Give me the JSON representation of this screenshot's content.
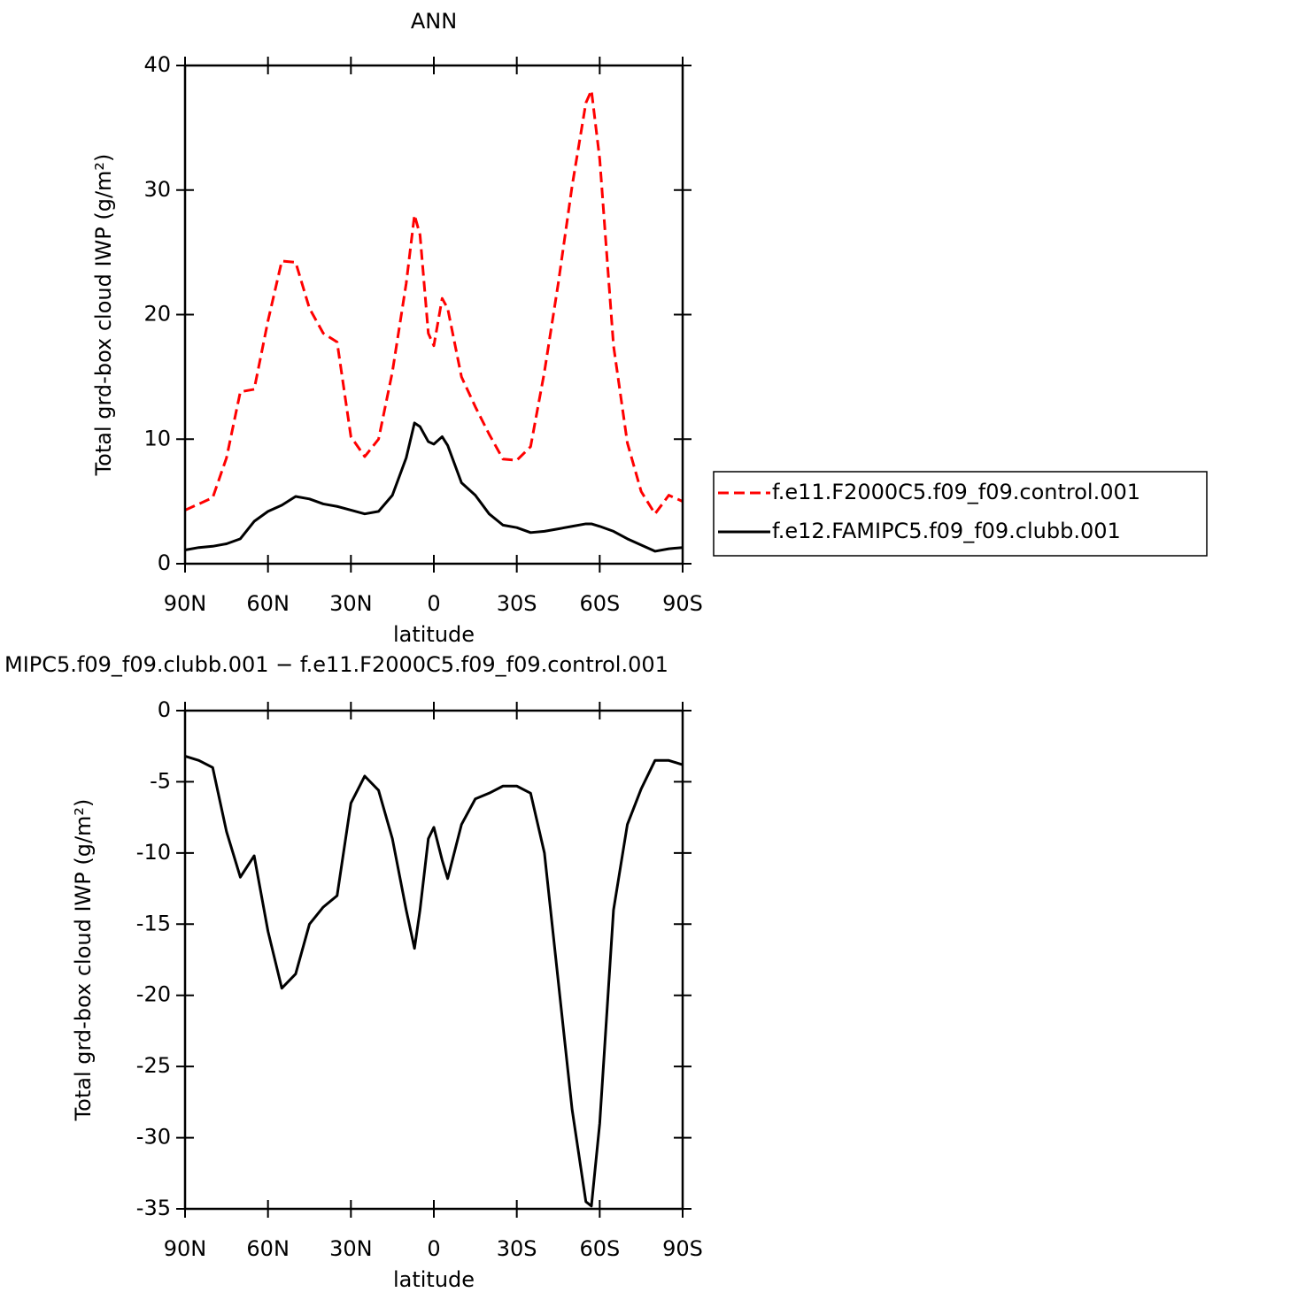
{
  "chart_data": [
    {
      "type": "line",
      "title": "ANN",
      "xlabel": "latitude",
      "ylabel": "Total grd-box cloud IWP (g/m²)",
      "x": [
        90,
        85,
        80,
        75,
        70,
        65,
        60,
        55,
        50,
        45,
        40,
        35,
        30,
        25,
        20,
        15,
        10,
        7,
        5,
        2,
        0,
        -3,
        -5,
        -10,
        -15,
        -20,
        -25,
        -30,
        -35,
        -40,
        -45,
        -50,
        -55,
        -57,
        -60,
        -65,
        -70,
        -75,
        -80,
        -85,
        -90
      ],
      "series": [
        {
          "name": "f.e11.F2000C5.f09_f09.control.001",
          "color": "#ff0000",
          "style": "dashed",
          "values": [
            4.3,
            4.8,
            5.3,
            8.5,
            13.8,
            14.0,
            19.5,
            24.3,
            24.2,
            20.5,
            18.5,
            17.8,
            10.2,
            8.6,
            10.0,
            15.4,
            22.5,
            28.0,
            26.4,
            18.5,
            17.5,
            21.3,
            20.5,
            15.0,
            12.6,
            10.4,
            8.4,
            8.3,
            9.4,
            15.4,
            22.5,
            30.3,
            37.0,
            38.0,
            32.5,
            17.5,
            9.7,
            5.8,
            4.0,
            5.5,
            5.0
          ]
        },
        {
          "name": "f.e12.FAMIPC5.f09_f09.clubb.001",
          "color": "#000000",
          "style": "solid",
          "values": [
            1.1,
            1.3,
            1.4,
            1.6,
            2.0,
            3.4,
            4.2,
            4.7,
            5.4,
            5.2,
            4.8,
            4.6,
            4.3,
            4.0,
            4.2,
            5.5,
            8.5,
            11.3,
            11.0,
            9.8,
            9.6,
            10.2,
            9.5,
            6.5,
            5.5,
            4.0,
            3.1,
            2.9,
            2.5,
            2.6,
            2.8,
            3.0,
            3.2,
            3.2,
            3.0,
            2.6,
            2.0,
            1.5,
            1.0,
            1.2,
            1.3
          ]
        }
      ],
      "xlim": [
        90,
        -90
      ],
      "xticks": [
        {
          "value": 90,
          "label": "90N"
        },
        {
          "value": 60,
          "label": "60N"
        },
        {
          "value": 30,
          "label": "30N"
        },
        0,
        {
          "value": -30,
          "label": "30S"
        },
        {
          "value": -60,
          "label": "60S"
        },
        {
          "value": -90,
          "label": "90S"
        }
      ],
      "ylim": [
        0,
        40
      ],
      "yticks": [
        0,
        10,
        20,
        30,
        40
      ],
      "legend": "right"
    },
    {
      "type": "line",
      "title": "MIPC5.f09_f09.clubb.001 − f.e11.F2000C5.f09_f09.control.001",
      "xlabel": "latitude",
      "ylabel": "Total grd-box cloud IWP (g/m²)",
      "x": [
        90,
        85,
        80,
        75,
        70,
        65,
        60,
        55,
        50,
        45,
        40,
        35,
        30,
        25,
        20,
        15,
        10,
        7,
        5,
        2,
        0,
        -3,
        -5,
        -10,
        -15,
        -20,
        -25,
        -30,
        -35,
        -40,
        -45,
        -50,
        -55,
        -57,
        -60,
        -65,
        -70,
        -75,
        -80,
        -85,
        -90
      ],
      "series": [
        {
          "color": "#000000",
          "style": "solid",
          "values": [
            -3.2,
            -3.5,
            -4.0,
            -8.5,
            -11.7,
            -10.2,
            -15.5,
            -19.5,
            -18.5,
            -15.0,
            -13.8,
            -13.0,
            -6.5,
            -4.6,
            -5.6,
            -9.0,
            -14.0,
            -16.7,
            -14.0,
            -9.0,
            -8.2,
            -10.5,
            -11.8,
            -8.0,
            -6.2,
            -5.8,
            -5.3,
            -5.3,
            -5.8,
            -10.0,
            -19.0,
            -28.0,
            -34.5,
            -34.8,
            -29.0,
            -14.0,
            -8.0,
            -5.5,
            -3.5,
            -3.5,
            -3.8
          ]
        }
      ],
      "xlim": [
        90,
        -90
      ],
      "xticks": [
        {
          "value": 90,
          "label": "90N"
        },
        {
          "value": 60,
          "label": "60N"
        },
        {
          "value": 30,
          "label": "30N"
        },
        0,
        {
          "value": -30,
          "label": "30S"
        },
        {
          "value": -60,
          "label": "60S"
        },
        {
          "value": -90,
          "label": "90S"
        }
      ],
      "ylim": [
        -35,
        0
      ],
      "yticks": [
        0,
        -5,
        -10,
        -15,
        -20,
        -25,
        -30,
        -35
      ]
    }
  ]
}
